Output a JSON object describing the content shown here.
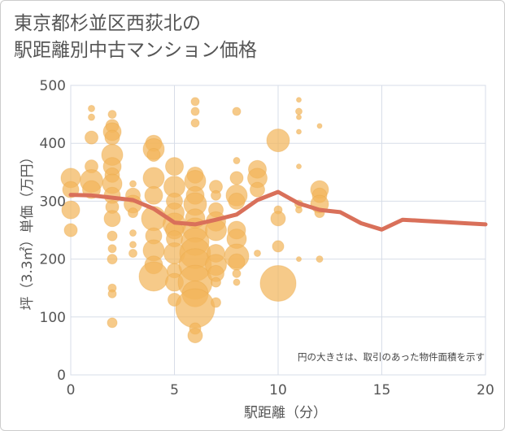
{
  "chart_data": {
    "type": "scatter",
    "title_lines": [
      "東京都杉並区西荻北の",
      "駅距離別中古マンション価格"
    ],
    "xlabel": "駅距離（分）",
    "ylabel": "坪（3.3㎡）単価（万円）",
    "xlim": [
      0,
      20
    ],
    "ylim": [
      0,
      500
    ],
    "x_ticks": [
      0,
      5,
      10,
      15,
      20
    ],
    "y_ticks": [
      0,
      100,
      200,
      300,
      400,
      500
    ],
    "grid": true,
    "annotation": "円の大きさは、取引のあった物件面積を示す",
    "colors": {
      "bubble": "#f2b65c",
      "line": "#d9705a"
    },
    "series": [
      {
        "kind": "bubble",
        "points": [
          {
            "x": 0,
            "y": 340,
            "s": 12
          },
          {
            "x": 0,
            "y": 320,
            "s": 10
          },
          {
            "x": 0,
            "y": 285,
            "s": 11
          },
          {
            "x": 0,
            "y": 250,
            "s": 8
          },
          {
            "x": 1,
            "y": 460,
            "s": 4
          },
          {
            "x": 1,
            "y": 445,
            "s": 4
          },
          {
            "x": 1,
            "y": 410,
            "s": 8
          },
          {
            "x": 1,
            "y": 360,
            "s": 8
          },
          {
            "x": 1,
            "y": 335,
            "s": 14
          },
          {
            "x": 1,
            "y": 320,
            "s": 11
          },
          {
            "x": 2,
            "y": 450,
            "s": 5
          },
          {
            "x": 2,
            "y": 430,
            "s": 8
          },
          {
            "x": 2,
            "y": 420,
            "s": 11
          },
          {
            "x": 2,
            "y": 410,
            "s": 9
          },
          {
            "x": 2,
            "y": 380,
            "s": 13
          },
          {
            "x": 2,
            "y": 360,
            "s": 11
          },
          {
            "x": 2,
            "y": 345,
            "s": 9
          },
          {
            "x": 2,
            "y": 330,
            "s": 12
          },
          {
            "x": 2,
            "y": 310,
            "s": 10
          },
          {
            "x": 2,
            "y": 290,
            "s": 8
          },
          {
            "x": 2,
            "y": 270,
            "s": 10
          },
          {
            "x": 2,
            "y": 240,
            "s": 6
          },
          {
            "x": 2,
            "y": 218,
            "s": 5
          },
          {
            "x": 2,
            "y": 200,
            "s": 6
          },
          {
            "x": 2,
            "y": 150,
            "s": 5
          },
          {
            "x": 2,
            "y": 140,
            "s": 5
          },
          {
            "x": 2,
            "y": 90,
            "s": 6
          },
          {
            "x": 3,
            "y": 330,
            "s": 4
          },
          {
            "x": 3,
            "y": 310,
            "s": 9
          },
          {
            "x": 3,
            "y": 295,
            "s": 11
          },
          {
            "x": 3,
            "y": 280,
            "s": 6
          },
          {
            "x": 3,
            "y": 245,
            "s": 4
          },
          {
            "x": 3,
            "y": 225,
            "s": 4
          },
          {
            "x": 3,
            "y": 210,
            "s": 5
          },
          {
            "x": 4,
            "y": 400,
            "s": 10
          },
          {
            "x": 4,
            "y": 390,
            "s": 13
          },
          {
            "x": 4,
            "y": 380,
            "s": 8
          },
          {
            "x": 4,
            "y": 340,
            "s": 13
          },
          {
            "x": 4,
            "y": 310,
            "s": 11
          },
          {
            "x": 4,
            "y": 270,
            "s": 15
          },
          {
            "x": 4,
            "y": 240,
            "s": 10
          },
          {
            "x": 4,
            "y": 215,
            "s": 13
          },
          {
            "x": 4,
            "y": 190,
            "s": 11
          },
          {
            "x": 4,
            "y": 170,
            "s": 18
          },
          {
            "x": 5,
            "y": 360,
            "s": 11
          },
          {
            "x": 5,
            "y": 325,
            "s": 13
          },
          {
            "x": 5,
            "y": 300,
            "s": 10
          },
          {
            "x": 5,
            "y": 280,
            "s": 12
          },
          {
            "x": 5,
            "y": 260,
            "s": 14
          },
          {
            "x": 5,
            "y": 250,
            "s": 11
          },
          {
            "x": 5,
            "y": 235,
            "s": 10
          },
          {
            "x": 5,
            "y": 210,
            "s": 13
          },
          {
            "x": 5,
            "y": 180,
            "s": 9
          },
          {
            "x": 5,
            "y": 160,
            "s": 11
          },
          {
            "x": 5,
            "y": 130,
            "s": 8
          },
          {
            "x": 6,
            "y": 472,
            "s": 5
          },
          {
            "x": 6,
            "y": 455,
            "s": 5
          },
          {
            "x": 6,
            "y": 435,
            "s": 5
          },
          {
            "x": 6,
            "y": 345,
            "s": 10
          },
          {
            "x": 6,
            "y": 335,
            "s": 13
          },
          {
            "x": 6,
            "y": 310,
            "s": 11
          },
          {
            "x": 6,
            "y": 295,
            "s": 14
          },
          {
            "x": 6,
            "y": 270,
            "s": 12
          },
          {
            "x": 6,
            "y": 250,
            "s": 15
          },
          {
            "x": 6,
            "y": 230,
            "s": 17
          },
          {
            "x": 6,
            "y": 210,
            "s": 19
          },
          {
            "x": 6,
            "y": 190,
            "s": 20
          },
          {
            "x": 6,
            "y": 160,
            "s": 21
          },
          {
            "x": 6,
            "y": 140,
            "s": 16
          },
          {
            "x": 6,
            "y": 115,
            "s": 24
          },
          {
            "x": 6,
            "y": 80,
            "s": 7
          },
          {
            "x": 6,
            "y": 68,
            "s": 9
          },
          {
            "x": 7,
            "y": 325,
            "s": 8
          },
          {
            "x": 7,
            "y": 310,
            "s": 6
          },
          {
            "x": 7,
            "y": 285,
            "s": 9
          },
          {
            "x": 7,
            "y": 265,
            "s": 12
          },
          {
            "x": 7,
            "y": 250,
            "s": 13
          },
          {
            "x": 7,
            "y": 210,
            "s": 11
          },
          {
            "x": 7,
            "y": 190,
            "s": 13
          },
          {
            "x": 7,
            "y": 175,
            "s": 10
          },
          {
            "x": 7,
            "y": 160,
            "s": 6
          },
          {
            "x": 7,
            "y": 125,
            "s": 6
          },
          {
            "x": 8,
            "y": 455,
            "s": 5
          },
          {
            "x": 8,
            "y": 370,
            "s": 4
          },
          {
            "x": 8,
            "y": 340,
            "s": 8
          },
          {
            "x": 8,
            "y": 310,
            "s": 13
          },
          {
            "x": 8,
            "y": 300,
            "s": 10
          },
          {
            "x": 8,
            "y": 250,
            "s": 11
          },
          {
            "x": 8,
            "y": 235,
            "s": 12
          },
          {
            "x": 8,
            "y": 205,
            "s": 15
          },
          {
            "x": 8,
            "y": 195,
            "s": 10
          },
          {
            "x": 8,
            "y": 175,
            "s": 5
          },
          {
            "x": 8,
            "y": 160,
            "s": 4
          },
          {
            "x": 9,
            "y": 355,
            "s": 11
          },
          {
            "x": 9,
            "y": 340,
            "s": 12
          },
          {
            "x": 9,
            "y": 320,
            "s": 9
          },
          {
            "x": 9,
            "y": 210,
            "s": 4
          },
          {
            "x": 10,
            "y": 405,
            "s": 14
          },
          {
            "x": 10,
            "y": 285,
            "s": 5
          },
          {
            "x": 10,
            "y": 270,
            "s": 9
          },
          {
            "x": 10,
            "y": 222,
            "s": 7
          },
          {
            "x": 10,
            "y": 158,
            "s": 22
          },
          {
            "x": 11,
            "y": 475,
            "s": 3
          },
          {
            "x": 11,
            "y": 455,
            "s": 4
          },
          {
            "x": 11,
            "y": 445,
            "s": 3
          },
          {
            "x": 11,
            "y": 420,
            "s": 3
          },
          {
            "x": 11,
            "y": 360,
            "s": 3
          },
          {
            "x": 11,
            "y": 295,
            "s": 5
          },
          {
            "x": 11,
            "y": 285,
            "s": 4
          },
          {
            "x": 11,
            "y": 200,
            "s": 3
          },
          {
            "x": 12,
            "y": 430,
            "s": 3
          },
          {
            "x": 12,
            "y": 320,
            "s": 11
          },
          {
            "x": 12,
            "y": 310,
            "s": 9
          },
          {
            "x": 12,
            "y": 295,
            "s": 11
          },
          {
            "x": 12,
            "y": 280,
            "s": 6
          },
          {
            "x": 12,
            "y": 200,
            "s": 4
          }
        ]
      },
      {
        "kind": "line",
        "x": [
          0,
          1,
          2,
          3,
          4,
          5,
          6,
          7,
          8,
          9,
          10,
          11,
          12,
          13,
          14,
          15,
          16,
          17,
          18,
          19,
          20
        ],
        "y": [
          311,
          310,
          306,
          302,
          287,
          263,
          260,
          268,
          277,
          302,
          316,
          296,
          285,
          281,
          262,
          251,
          268,
          266,
          264,
          262,
          260
        ]
      }
    ]
  }
}
